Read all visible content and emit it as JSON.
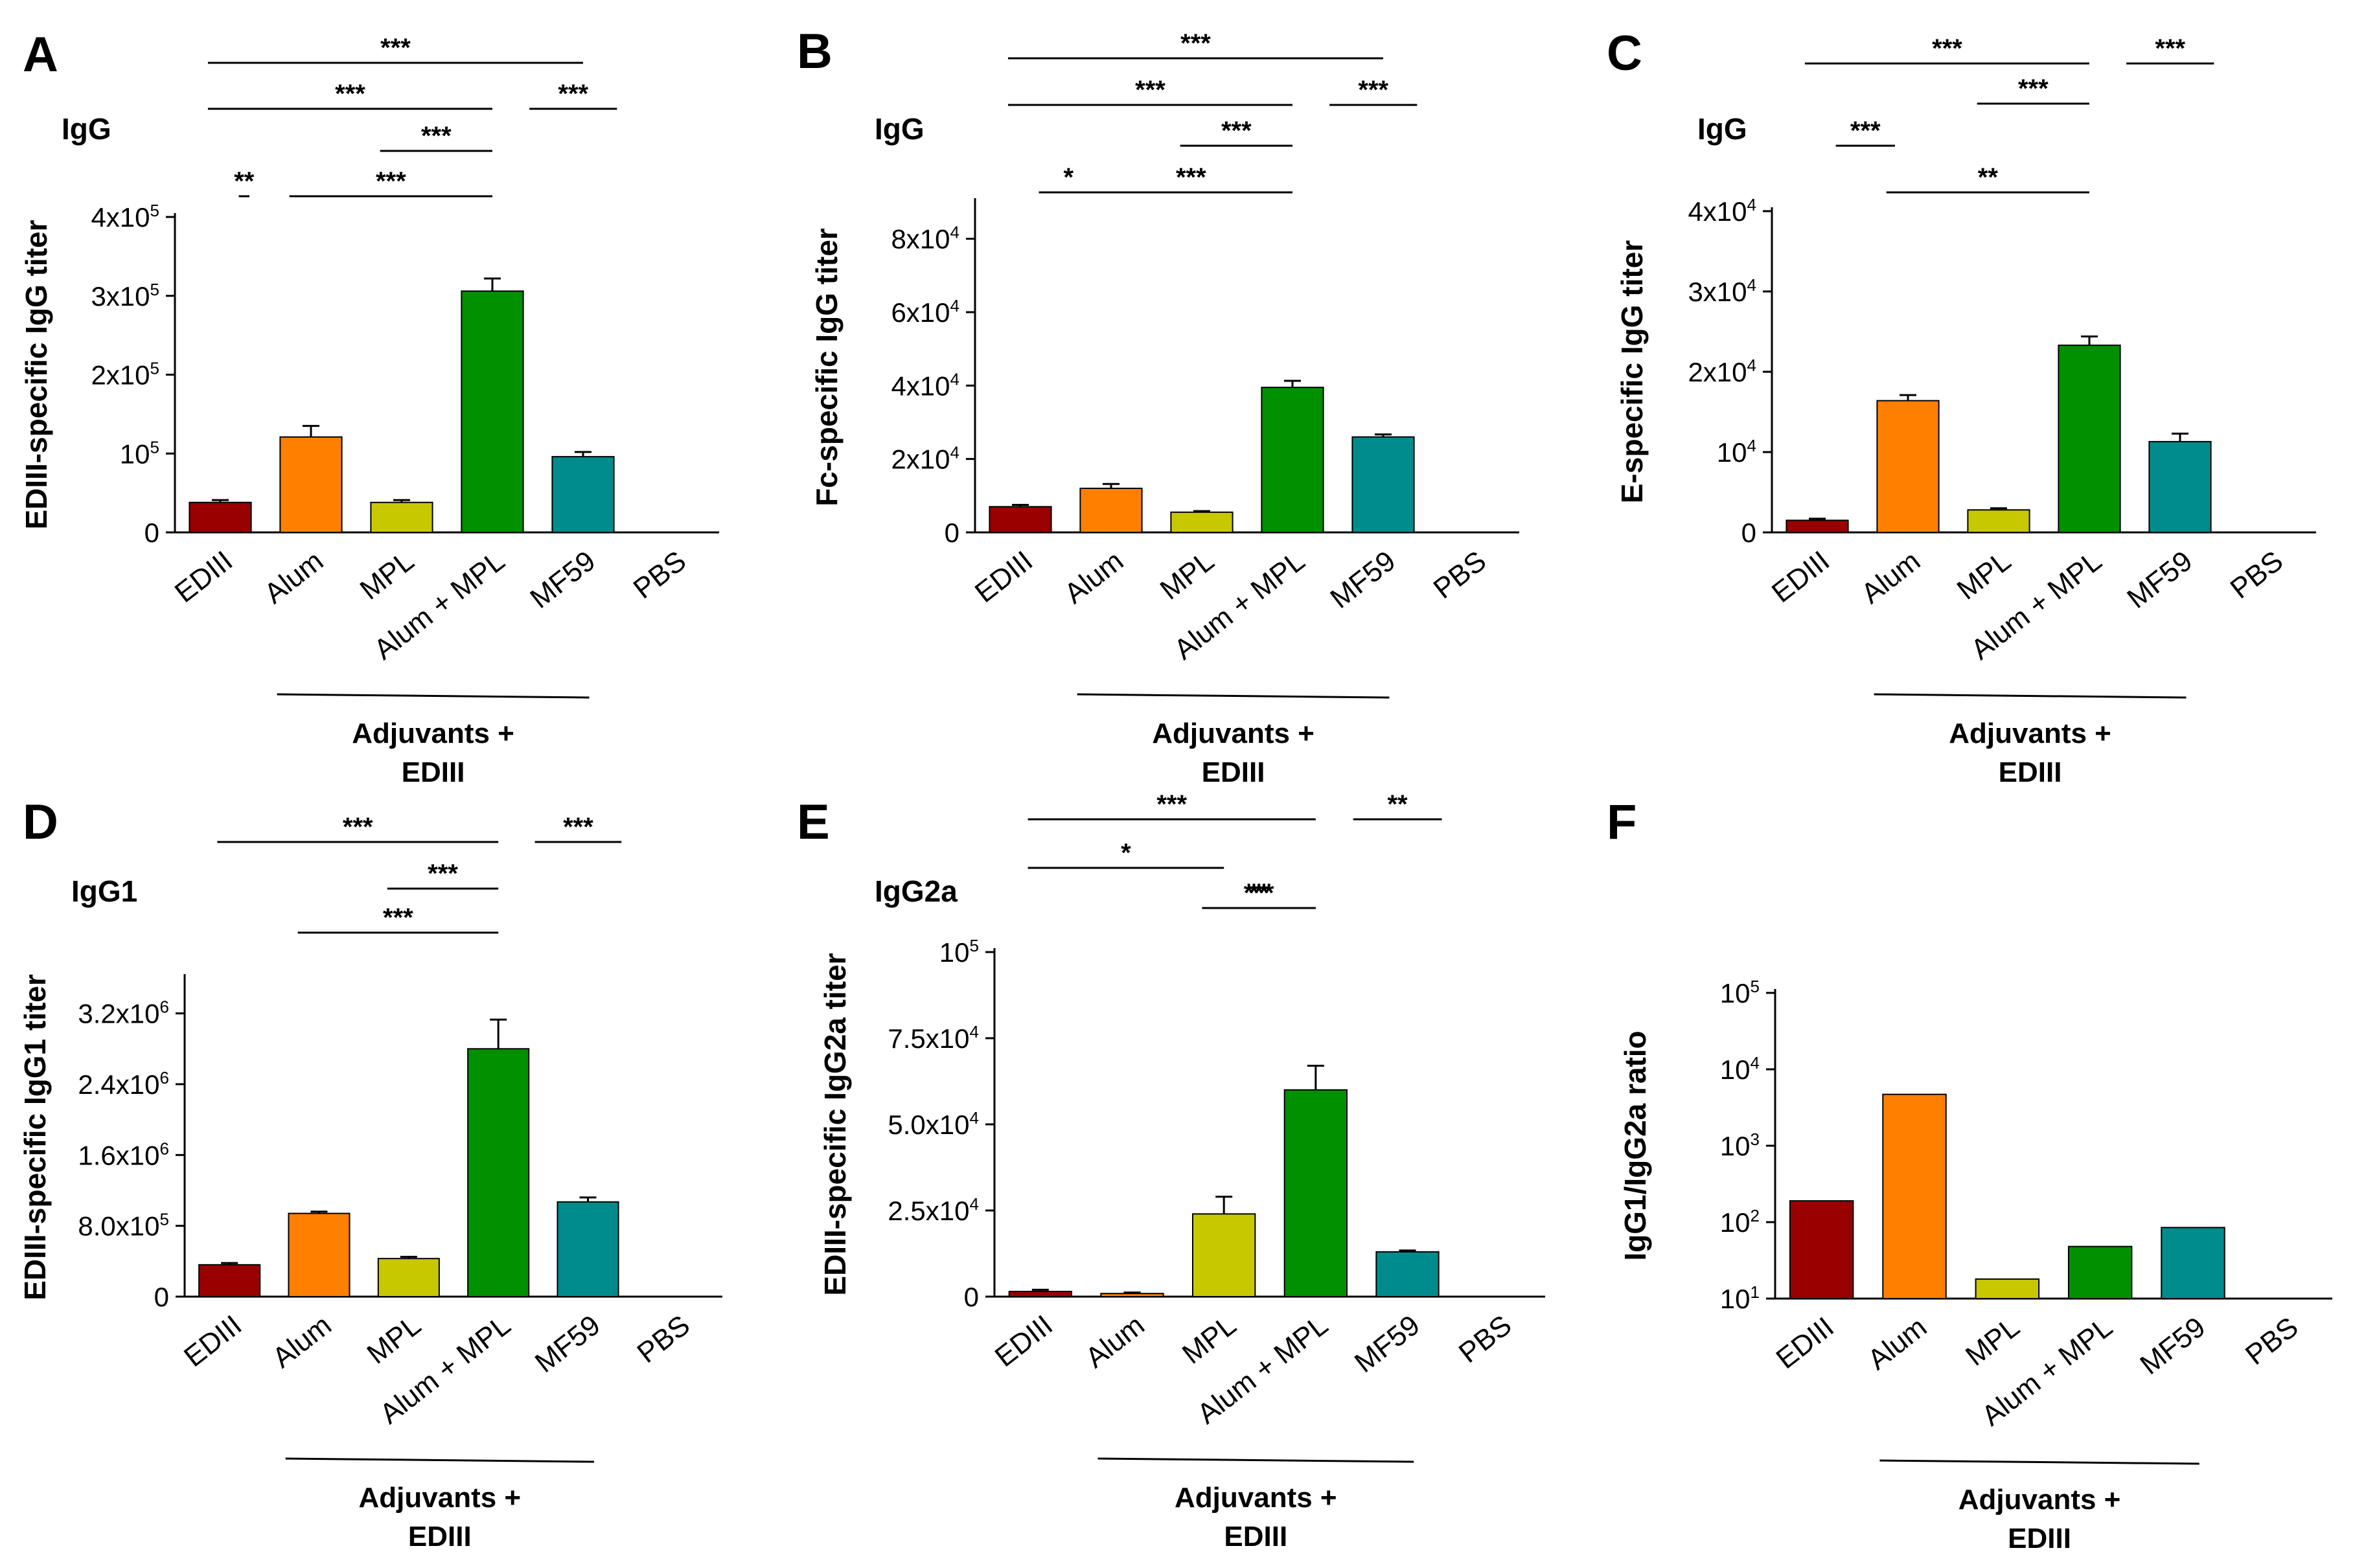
{
  "figure": {
    "categories": [
      "EDIII",
      "Alum",
      "MPL",
      "Alum + MPL",
      "MF59",
      "PBS"
    ],
    "group_label_line1": "Adjuvants +",
    "group_label_line2": "EDIII",
    "colors": {
      "EDIII": "#990000",
      "Alum": "#ff8000",
      "MPL": "#c8c800",
      "Alum + MPL": "#009000",
      "MF59": "#008c8c",
      "PBS": "#ffffff"
    }
  },
  "chart_data": [
    {
      "panel": "A",
      "type": "bar",
      "title": "IgG",
      "ylabel": "EDIII-specific IgG titer",
      "scale": "linear",
      "ylim": [
        0,
        400000
      ],
      "ticks": [
        {
          "value": 0,
          "label": "0",
          "exp": ""
        },
        {
          "value": 100000,
          "label": "10",
          "exp": "5"
        },
        {
          "value": 200000,
          "label": "2x10",
          "exp": "5"
        },
        {
          "value": 300000,
          "label": "3x10",
          "exp": "5"
        },
        {
          "value": 400000,
          "label": "4x10",
          "exp": "5"
        }
      ],
      "values": [
        38000,
        121000,
        38000,
        306000,
        96000,
        0
      ],
      "errors": [
        3000,
        14000,
        3000,
        16000,
        6000,
        0
      ],
      "significance": [
        {
          "label": "***",
          "from": 0,
          "to": 4
        },
        {
          "label": "***",
          "from": 0,
          "to": 3
        },
        {
          "label": "***",
          "from": 4,
          "to": 4
        },
        {
          "label": "***",
          "from": 2,
          "to": 3
        },
        {
          "label": "**",
          "from": 0,
          "to": 0
        },
        {
          "label": "***",
          "from": 1,
          "to": 3
        }
      ]
    },
    {
      "panel": "B",
      "type": "bar",
      "title": "IgG",
      "ylabel": "Fc-specific IgG titer",
      "scale": "linear",
      "ylim": [
        0,
        90000
      ],
      "ticks": [
        {
          "value": 0,
          "label": "0",
          "exp": ""
        },
        {
          "value": 20000,
          "label": "2x10",
          "exp": "4"
        },
        {
          "value": 40000,
          "label": "4x10",
          "exp": "4"
        },
        {
          "value": 60000,
          "label": "6x10",
          "exp": "4"
        },
        {
          "value": 80000,
          "label": "8x10",
          "exp": "4"
        }
      ],
      "values": [
        7000,
        12000,
        5500,
        39500,
        26000,
        0
      ],
      "errors": [
        500,
        1200,
        300,
        1800,
        700,
        0
      ],
      "significance": [
        {
          "label": "***",
          "from": 0,
          "to": 4
        },
        {
          "label": "***",
          "from": 0,
          "to": 3
        },
        {
          "label": "***",
          "from": 4,
          "to": 4
        },
        {
          "label": "***",
          "from": 2,
          "to": 3
        },
        {
          "label": "*",
          "from": 0,
          "to": 0
        },
        {
          "label": "***",
          "from": 1,
          "to": 3
        }
      ]
    },
    {
      "panel": "C",
      "type": "bar",
      "title": "IgG",
      "ylabel": "E-specific IgG titer",
      "scale": "linear",
      "ylim": [
        0,
        40000
      ],
      "ticks": [
        {
          "value": 0,
          "label": "0",
          "exp": ""
        },
        {
          "value": 10000,
          "label": "10",
          "exp": "4"
        },
        {
          "value": 20000,
          "label": "2x10",
          "exp": "4"
        },
        {
          "value": 30000,
          "label": "3x10",
          "exp": "4"
        },
        {
          "value": 40000,
          "label": "4x10",
          "exp": "4"
        }
      ],
      "values": [
        1500,
        16400,
        2800,
        23300,
        11300,
        0
      ],
      "errors": [
        200,
        700,
        200,
        1100,
        1000,
        0
      ],
      "significance": [
        {
          "label": "***",
          "from": 0,
          "to": 3
        },
        {
          "label": "***",
          "from": 4,
          "to": 4
        },
        {
          "label": "***",
          "from": 2,
          "to": 3
        },
        {
          "label": "***",
          "from": 0,
          "to": 0
        },
        {
          "label": "**",
          "from": 1,
          "to": 3
        }
      ]
    },
    {
      "panel": "D",
      "type": "bar",
      "title": "IgG1",
      "ylabel": "EDIII-specific IgG1 titer",
      "scale": "linear",
      "ylim": [
        0,
        3600000
      ],
      "ticks": [
        {
          "value": 0,
          "label": "0",
          "exp": ""
        },
        {
          "value": 800000,
          "label": "8.0x10",
          "exp": "5"
        },
        {
          "value": 1600000,
          "label": "1.6x10",
          "exp": "6"
        },
        {
          "value": 2400000,
          "label": "2.4x10",
          "exp": "6"
        },
        {
          "value": 3200000,
          "label": "3.2x10",
          "exp": "6"
        }
      ],
      "values": [
        360000,
        940000,
        430000,
        2800000,
        1070000,
        0
      ],
      "errors": [
        20000,
        20000,
        20000,
        330000,
        50000,
        0
      ],
      "significance": [
        {
          "label": "***",
          "from": 0,
          "to": 3
        },
        {
          "label": "***",
          "from": 4,
          "to": 4
        },
        {
          "label": "***",
          "from": 2,
          "to": 3
        },
        {
          "label": "***",
          "from": 1,
          "to": 3
        }
      ]
    },
    {
      "panel": "E",
      "type": "bar",
      "title": "IgG2a",
      "ylabel": "EDIII-specific IgG2a titer",
      "scale": "linear",
      "ylim": [
        0,
        100000
      ],
      "ticks": [
        {
          "value": 0,
          "label": "0",
          "exp": ""
        },
        {
          "value": 25000,
          "label": "2.5x10",
          "exp": "4"
        },
        {
          "value": 50000,
          "label": "5.0x10",
          "exp": "4"
        },
        {
          "value": 75000,
          "label": "7.5x10",
          "exp": "4"
        },
        {
          "value": 100000,
          "label": "10",
          "exp": "5"
        }
      ],
      "values": [
        1500,
        900,
        24000,
        60000,
        13000,
        0
      ],
      "errors": [
        500,
        300,
        5000,
        7000,
        400,
        0
      ],
      "significance": [
        {
          "label": "***",
          "from": 0,
          "to": 3
        },
        {
          "label": "**",
          "from": 4,
          "to": 4
        },
        {
          "label": "*",
          "from": 0,
          "to": 2
        },
        {
          "label": "**",
          "from": 2,
          "to": 3
        },
        {
          "label": "***",
          "from": 2,
          "to": 3
        }
      ]
    },
    {
      "panel": "F",
      "type": "bar",
      "title": "",
      "ylabel": "IgG1/IgG2a ratio",
      "scale": "log",
      "ylim": [
        10,
        100000
      ],
      "ticks": [
        {
          "value": 10,
          "label": "10",
          "exp": "1"
        },
        {
          "value": 100,
          "label": "10",
          "exp": "2"
        },
        {
          "value": 1000,
          "label": "10",
          "exp": "3"
        },
        {
          "value": 10000,
          "label": "10",
          "exp": "4"
        },
        {
          "value": 100000,
          "label": "10",
          "exp": "5"
        }
      ],
      "values": [
        190,
        4700,
        18,
        48,
        85,
        10
      ],
      "errors": [
        0,
        0,
        0,
        0,
        0,
        0
      ],
      "significance": []
    }
  ]
}
